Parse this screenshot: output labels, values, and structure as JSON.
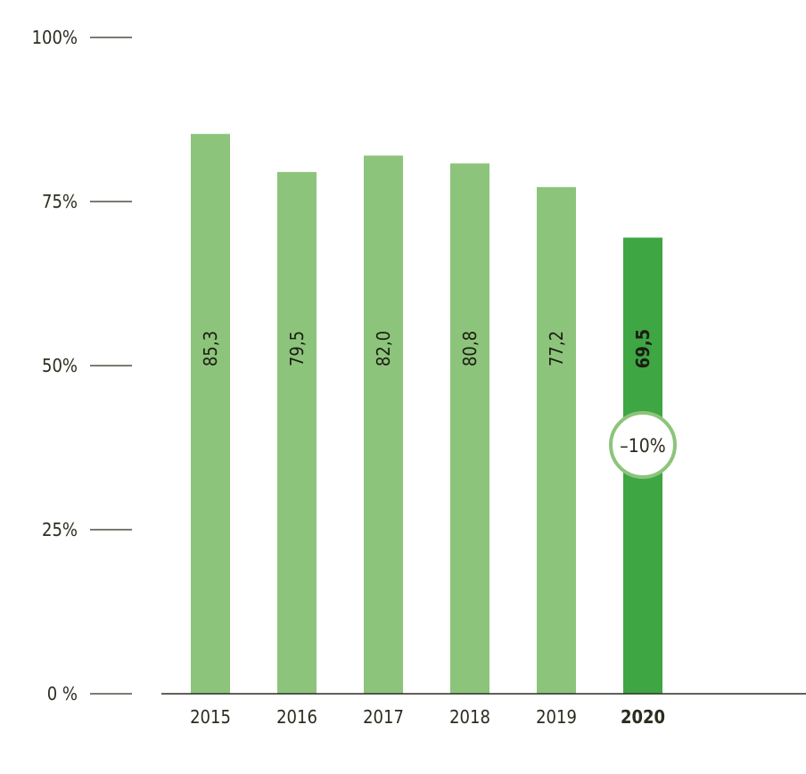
{
  "chart_data": {
    "type": "bar",
    "categories": [
      "2015",
      "2016",
      "2017",
      "2018",
      "2019",
      "2020"
    ],
    "values": [
      85.3,
      79.5,
      82.0,
      80.8,
      77.2,
      69.5
    ],
    "data_labels": [
      "85,3",
      "79,5",
      "82,0",
      "80,8",
      "77,2",
      "69,5"
    ],
    "yticks": [
      {
        "value": 0,
        "label": "0 %"
      },
      {
        "value": 25,
        "label": "25%"
      },
      {
        "value": 50,
        "label": "50%"
      },
      {
        "value": 75,
        "label": "75%"
      },
      {
        "value": 100,
        "label": "100%"
      }
    ],
    "ylim": [
      0,
      100
    ],
    "highlight_category": "2020",
    "annotation": {
      "category": "2020",
      "text": "–10%"
    },
    "colors": {
      "bar": "#8cc47b",
      "highlight": "#3ea643",
      "badge_border": "#8cc47b",
      "axis": "#2b2b1f"
    },
    "title": "",
    "xlabel": "",
    "ylabel": ""
  }
}
